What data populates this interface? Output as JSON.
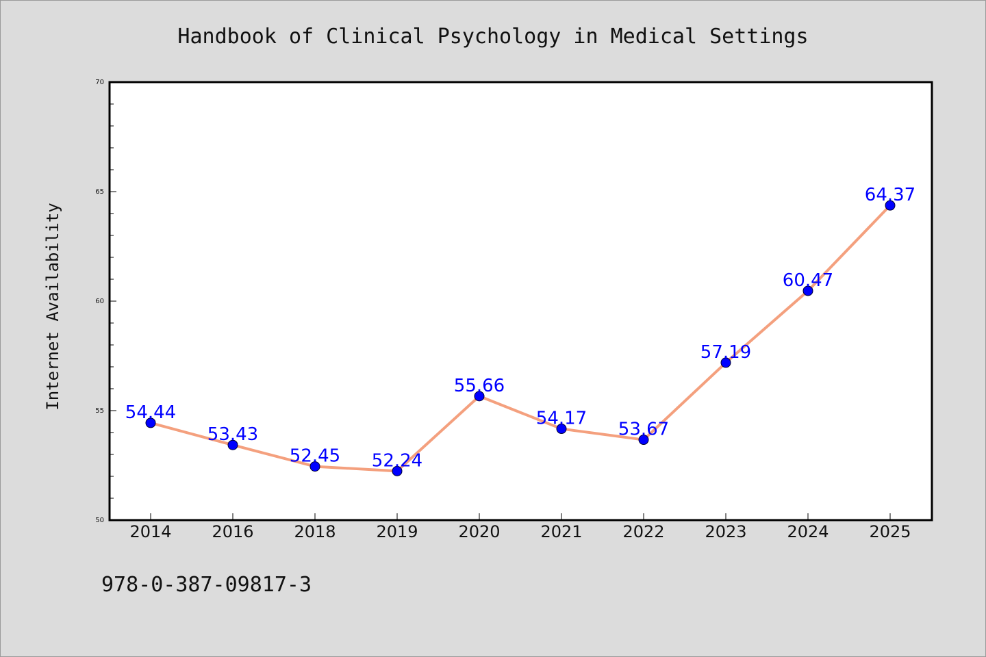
{
  "chart_data": {
    "type": "line",
    "title": "Handbook of Clinical Psychology in Medical Settings",
    "xlabel": "",
    "ylabel": "Internet Availability",
    "categories": [
      "2014",
      "2016",
      "2018",
      "2019",
      "2020",
      "2021",
      "2022",
      "2023",
      "2024",
      "2025"
    ],
    "series": [
      {
        "values": [
          54.44,
          53.43,
          52.45,
          52.24,
          55.66,
          54.17,
          53.67,
          57.19,
          60.47,
          64.37
        ],
        "data_labels": [
          "54.44",
          "53.43",
          "52.45",
          "52.24",
          "55.66",
          "54.17",
          "53.67",
          "57.19",
          "60.47",
          "64.37"
        ]
      }
    ],
    "ylim": [
      50,
      70
    ],
    "yticks": [
      "50",
      "55",
      "60",
      "65",
      "70"
    ],
    "y_minor_step": 1,
    "grid": false,
    "legend": "none",
    "colors": {
      "line": "#f4a07e",
      "marker": "#0000ff",
      "data_label": "#0000ff",
      "plot_background": "#ffffff",
      "figure_background": "#dcdcdc"
    }
  },
  "footer": {
    "isbn": "978-0-387-09817-3"
  }
}
